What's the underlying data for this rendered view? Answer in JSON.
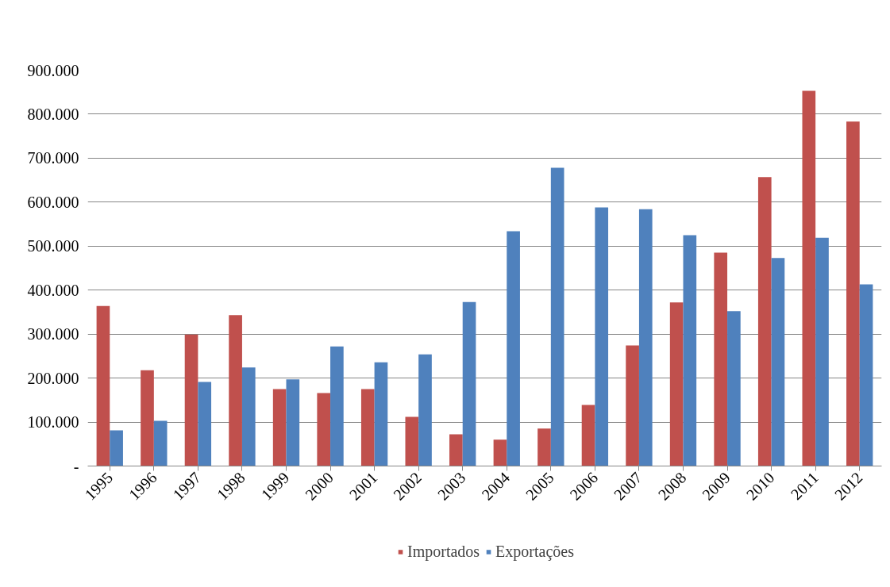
{
  "chart_data": {
    "type": "bar",
    "categories": [
      "1995",
      "1996",
      "1997",
      "1998",
      "1999",
      "2000",
      "2001",
      "2002",
      "2003",
      "2004",
      "2005",
      "2006",
      "2007",
      "2008",
      "2009",
      "2010",
      "2011",
      "2012"
    ],
    "series": [
      {
        "name": "Importados",
        "color": "#c0504d",
        "values": [
          364000,
          218000,
          299000,
          343000,
          175000,
          166000,
          175000,
          112000,
          72000,
          60000,
          85000,
          139000,
          274000,
          372000,
          485000,
          657000,
          853000,
          783000
        ]
      },
      {
        "name": "Exportações",
        "color": "#4f81bd",
        "values": [
          81000,
          103000,
          191000,
          224000,
          197000,
          272000,
          236000,
          254000,
          373000,
          534000,
          678000,
          588000,
          584000,
          525000,
          352000,
          473000,
          519000,
          413000
        ]
      }
    ],
    "ylim": [
      0,
      900000
    ],
    "yticks": [
      {
        "value": 0,
        "label": "-"
      },
      {
        "value": 100000,
        "label": "100.000"
      },
      {
        "value": 200000,
        "label": "200.000"
      },
      {
        "value": 300000,
        "label": "300.000"
      },
      {
        "value": 400000,
        "label": "400.000"
      },
      {
        "value": 500000,
        "label": "500.000"
      },
      {
        "value": 600000,
        "label": "600.000"
      },
      {
        "value": 700000,
        "label": "700.000"
      },
      {
        "value": 800000,
        "label": "800.000"
      },
      {
        "value": 900000,
        "label": "900.000"
      }
    ],
    "grid": "y",
    "legend": "bottom"
  }
}
